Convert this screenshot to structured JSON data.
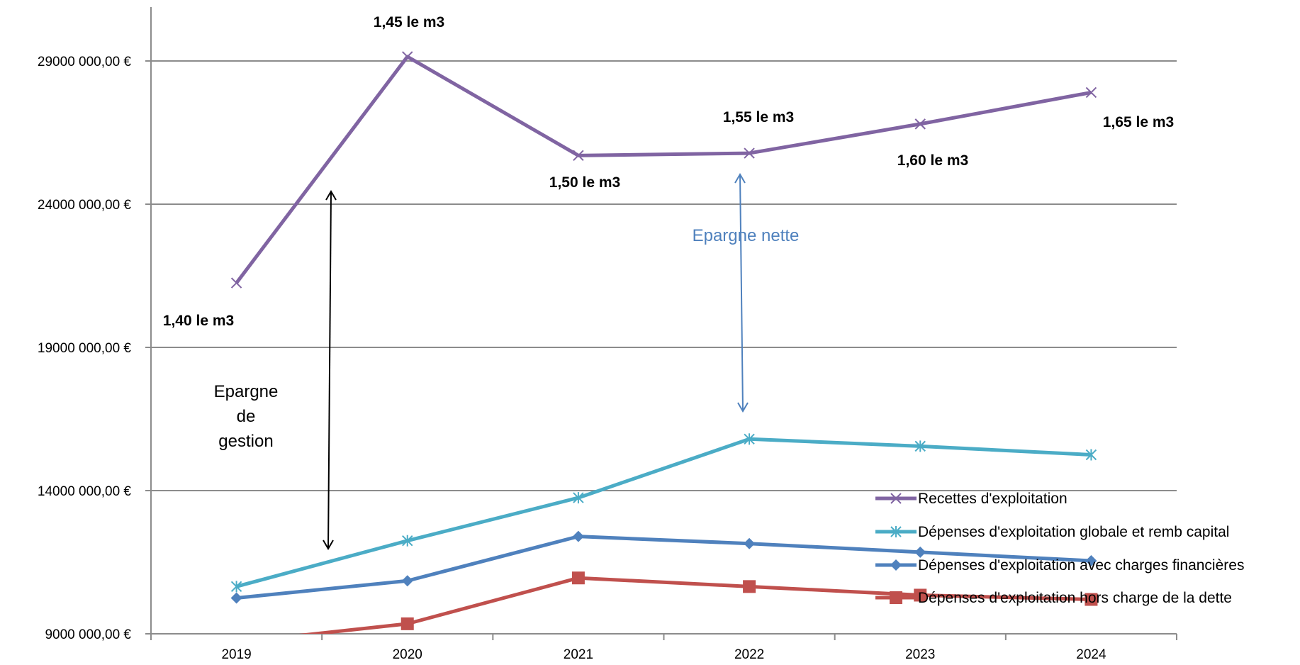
{
  "chart_data": {
    "type": "line",
    "title": "",
    "xlabel": "",
    "ylabel": "",
    "categories": [
      "2019",
      "2020",
      "2021",
      "2022",
      "2023",
      "2024"
    ],
    "ylim": [
      9000000,
      29000000
    ],
    "y_ticks": [
      9000000,
      14000000,
      19000000,
      24000000,
      29000000
    ],
    "y_tick_labels": [
      "9000 000,00 €",
      "14000 000,00 €",
      "19000 000,00 €",
      "24000 000,00 €",
      "29000 000,00 €"
    ],
    "grid": "horizontal",
    "legend_position": "bottom-right",
    "series": [
      {
        "name": "Recettes d'exploitation",
        "values": [
          21250000,
          29150000,
          25700000,
          25780000,
          26800000,
          27900000
        ],
        "color": "#8064a2",
        "marker": "x-icon"
      },
      {
        "name": "Dépenses d'exploitation globale et remb capital",
        "values": [
          10650000,
          12250000,
          13750000,
          15800000,
          15550000,
          15250000
        ],
        "color": "#4bacc6",
        "marker": "asterisk-icon"
      },
      {
        "name": "Dépenses d'exploitation avec charges financières",
        "values": [
          10250000,
          10850000,
          12400000,
          12150000,
          11850000,
          11550000
        ],
        "color": "#4f81bd",
        "marker": "diamond-icon"
      },
      {
        "name": "Dépenses d'exploitation hors charge de la dette",
        "values": [
          8700000,
          9350000,
          10950000,
          10650000,
          10350000,
          10200000
        ],
        "color": "#c0504d",
        "marker": "square-icon"
      }
    ],
    "price_labels": [
      "1,40 le m3",
      "1,45 le m3",
      "1,50 le m3",
      "1,55 le m3",
      "1,60 le m3",
      "1,65 le m3"
    ],
    "annotations": {
      "epargne_gestion": [
        "Epargne",
        "de",
        "gestion"
      ],
      "epargne_nette": "Epargne nette"
    }
  }
}
